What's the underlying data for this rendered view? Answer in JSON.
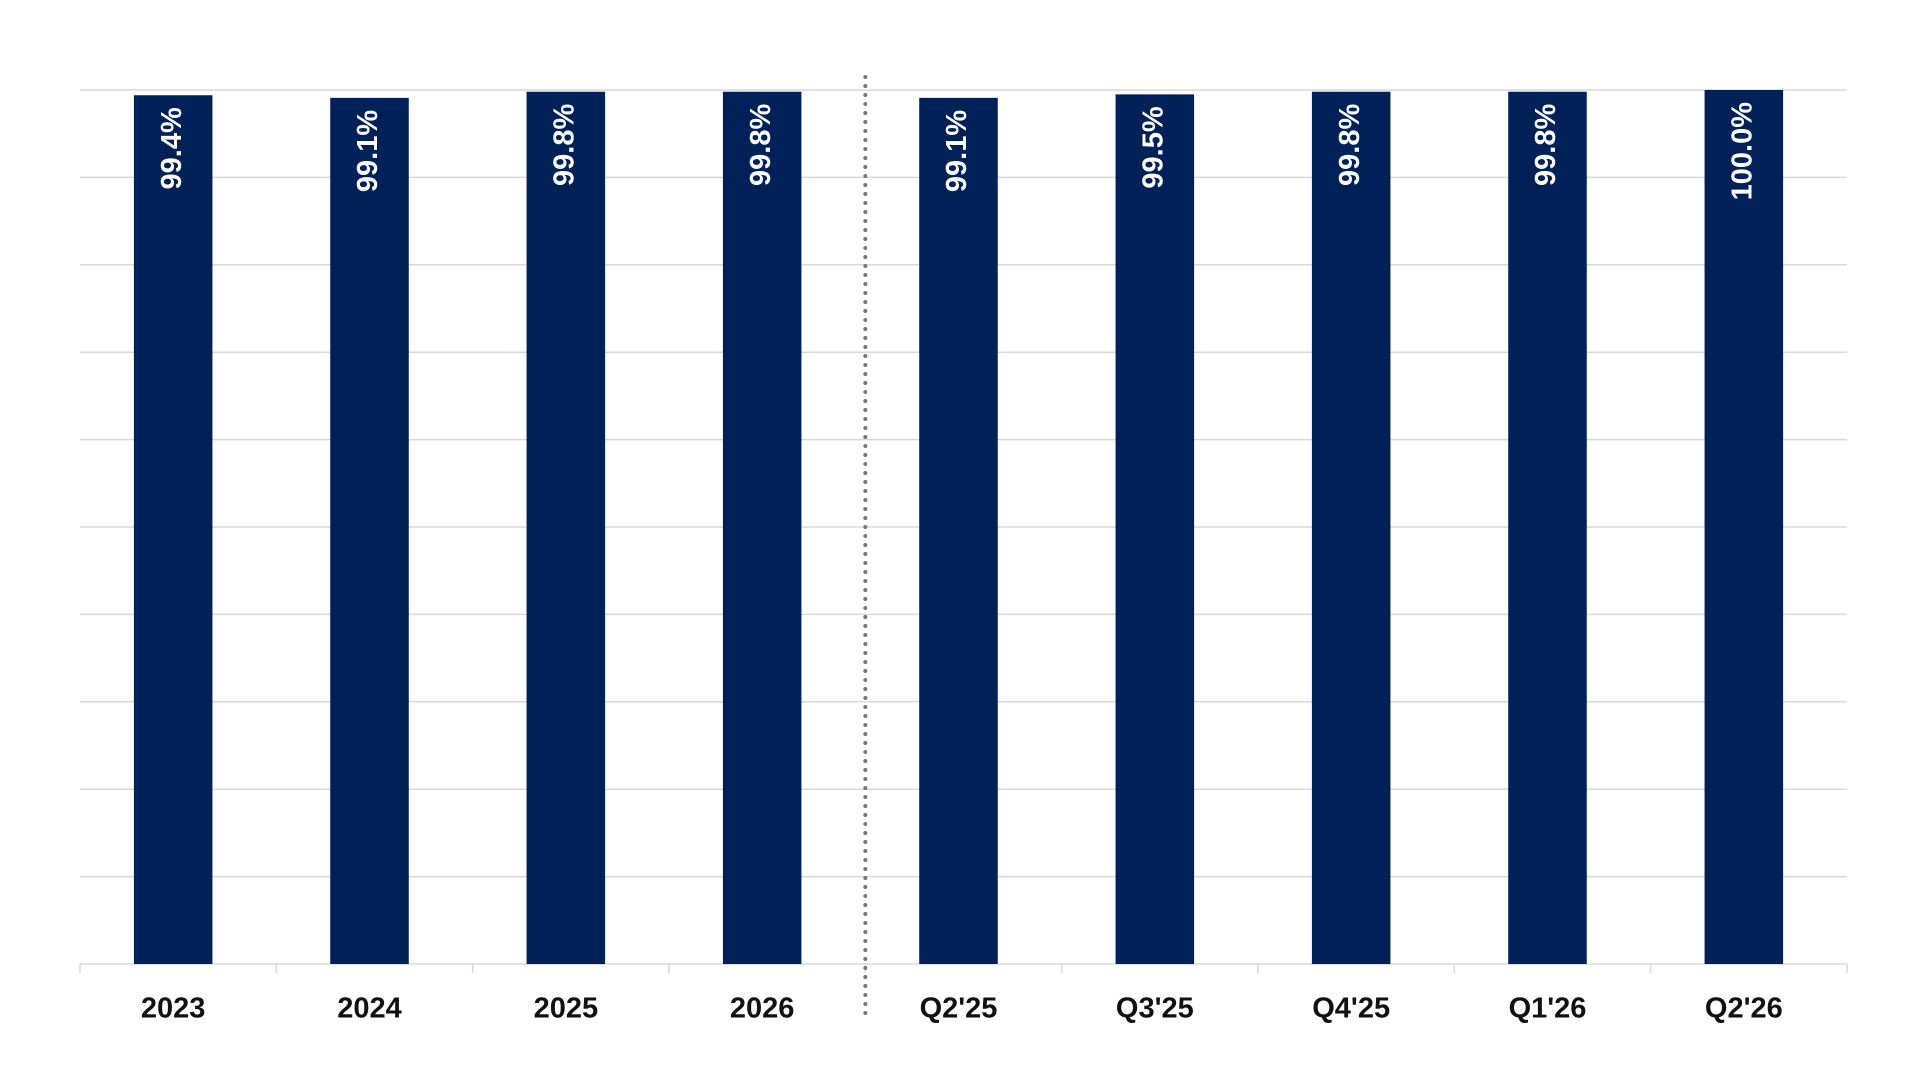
{
  "chart_data": {
    "type": "bar",
    "categories": [
      "2023",
      "2024",
      "2025",
      "2026",
      "Q2'25",
      "Q3'25",
      "Q4'25",
      "Q1'26",
      "Q2'26"
    ],
    "values": [
      99.4,
      99.1,
      99.8,
      99.8,
      99.1,
      99.5,
      99.8,
      99.8,
      100.0
    ],
    "value_labels": [
      "99.4%",
      "99.1%",
      "99.8%",
      "99.8%",
      "99.1%",
      "99.5%",
      "99.8%",
      "99.8%",
      "100.0%"
    ],
    "color": "#002157",
    "ylim": [
      0,
      100
    ],
    "yticks": [
      0,
      10,
      20,
      30,
      40,
      50,
      60,
      70,
      80,
      90,
      100
    ],
    "grid": true
  }
}
